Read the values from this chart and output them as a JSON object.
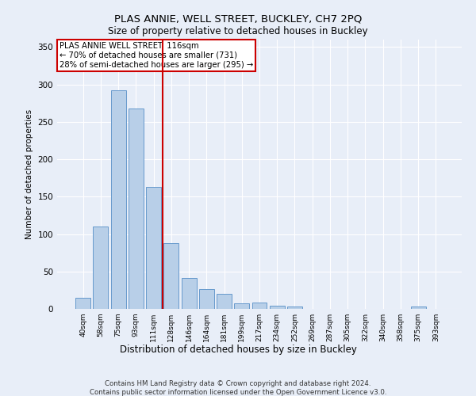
{
  "title": "PLAS ANNIE, WELL STREET, BUCKLEY, CH7 2PQ",
  "subtitle": "Size of property relative to detached houses in Buckley",
  "xlabel": "Distribution of detached houses by size in Buckley",
  "ylabel": "Number of detached properties",
  "categories": [
    "40sqm",
    "58sqm",
    "75sqm",
    "93sqm",
    "111sqm",
    "128sqm",
    "146sqm",
    "164sqm",
    "181sqm",
    "199sqm",
    "217sqm",
    "234sqm",
    "252sqm",
    "269sqm",
    "287sqm",
    "305sqm",
    "322sqm",
    "340sqm",
    "358sqm",
    "375sqm",
    "393sqm"
  ],
  "values": [
    15,
    110,
    292,
    268,
    163,
    88,
    41,
    26,
    20,
    7,
    8,
    4,
    3,
    0,
    0,
    0,
    0,
    0,
    0,
    3,
    0
  ],
  "bar_color": "#b8cfe8",
  "bar_edge_color": "#6699cc",
  "vline_x": 4.5,
  "vline_color": "#cc0000",
  "annotation_text": "PLAS ANNIE WELL STREET: 116sqm\n← 70% of detached houses are smaller (731)\n28% of semi-detached houses are larger (295) →",
  "annotation_box_color": "white",
  "annotation_box_edge": "#cc0000",
  "ylim": [
    0,
    360
  ],
  "yticks": [
    0,
    50,
    100,
    150,
    200,
    250,
    300,
    350
  ],
  "footer1": "Contains HM Land Registry data © Crown copyright and database right 2024.",
  "footer2": "Contains public sector information licensed under the Open Government Licence v3.0.",
  "bg_color": "#e8eef8",
  "plot_bg_color": "#e8eef8"
}
